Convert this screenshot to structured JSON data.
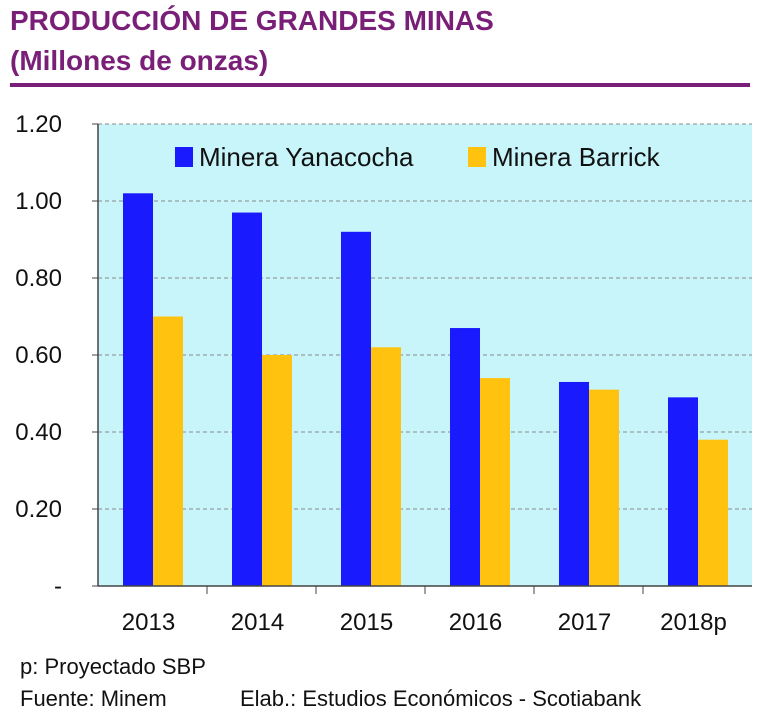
{
  "header": {
    "title": "PRODUCCIÓN DE GRANDES MINAS",
    "subtitle": "(Millones de onzas)"
  },
  "chart_data": {
    "type": "bar",
    "categories": [
      "2013",
      "2014",
      "2015",
      "2016",
      "2017",
      "2018p"
    ],
    "series": [
      {
        "name": "Minera Yanacocha",
        "color": "#1a1aff",
        "values": [
          1.02,
          0.97,
          0.92,
          0.67,
          0.53,
          0.49
        ]
      },
      {
        "name": "Minera Barrick",
        "color": "#ffc20e",
        "values": [
          0.7,
          0.6,
          0.62,
          0.54,
          0.51,
          0.38
        ]
      }
    ],
    "yticks": [
      "-",
      "0.20",
      "0.40",
      "0.60",
      "0.80",
      "1.00",
      "1.20"
    ],
    "ylim": [
      0,
      1.2
    ],
    "grid": true,
    "legend_position": "top",
    "plot_background": "#c8f5fa"
  },
  "footer": {
    "note": "p: Proyectado SBP",
    "source": "Fuente: Minem",
    "elab": "Elab.: Estudios Económicos - Scotiabank"
  }
}
